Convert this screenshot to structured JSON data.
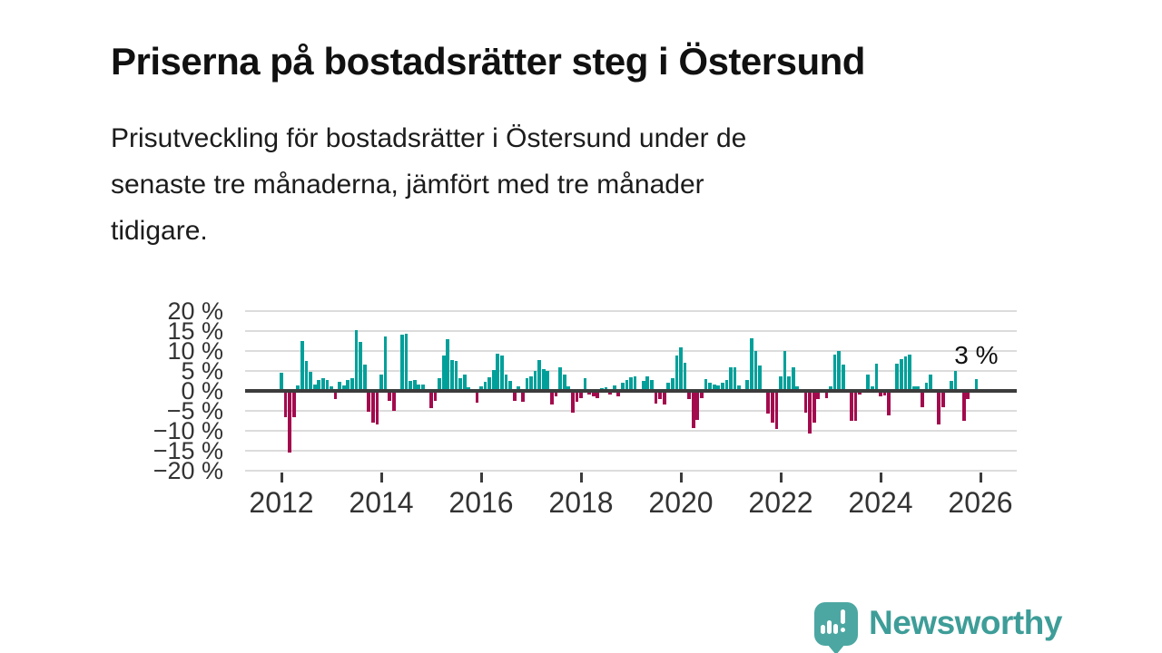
{
  "header": {
    "title": "Priserna på bostadsrätter steg i Östersund",
    "subtitle_lines": [
      "Prisutveckling för bostadsrätter i Östersund under de",
      "senaste tre månaderna, jämfört med tre månader",
      "tidigare."
    ]
  },
  "footer": {
    "brand": "Newsworthy",
    "logo_icon": "bar-chart-speech-bubble-icon"
  },
  "colors": {
    "positive_bar": "#00a09a",
    "negative_bar": "#a30a4e",
    "zero_line": "#3c3c3c",
    "gridline": "#dcdcdc",
    "axis_text": "#333333",
    "title_text": "#111111",
    "brand_teal": "#3e9d98",
    "logo_bubble": "#4ca7a2"
  },
  "chart_data": {
    "type": "bar",
    "unit": "%",
    "x_start": "2012-01",
    "x_step": "1 month",
    "ylim": [
      -20,
      20
    ],
    "grid": true,
    "y_ticks": [
      {
        "value": 20,
        "label": "20 %"
      },
      {
        "value": 15,
        "label": "15 %"
      },
      {
        "value": 10,
        "label": "10 %"
      },
      {
        "value": 5,
        "label": "5 %"
      },
      {
        "value": 0,
        "label": "0 %"
      },
      {
        "value": -5,
        "label": "−5 %"
      },
      {
        "value": -10,
        "label": "−10 %"
      },
      {
        "value": -15,
        "label": "−15 %"
      },
      {
        "value": -20,
        "label": "−20 %"
      }
    ],
    "x_ticks": [
      {
        "year": 2012,
        "label": "2012"
      },
      {
        "year": 2014,
        "label": "2014"
      },
      {
        "year": 2016,
        "label": "2016"
      },
      {
        "year": 2018,
        "label": "2018"
      },
      {
        "year": 2020,
        "label": "2020"
      },
      {
        "year": 2022,
        "label": "2022"
      },
      {
        "year": 2024,
        "label": "2024"
      },
      {
        "year": 2026,
        "label": "2026"
      }
    ],
    "annotation": {
      "text": "3 %",
      "applies_to": "last-bar",
      "value": 3
    },
    "values": [
      4.5,
      -6.5,
      -15.5,
      -6.5,
      1.3,
      12.4,
      7.4,
      4.7,
      1.7,
      2.8,
      3.2,
      2.7,
      1.1,
      -2.0,
      2.2,
      1.3,
      2.8,
      3.2,
      15.2,
      12.2,
      6.5,
      -5.2,
      -7.9,
      -8.4,
      4.2,
      13.7,
      -2.4,
      -5.0,
      0.4,
      14.1,
      14.3,
      2.6,
      2.8,
      1.5,
      1.5,
      0.3,
      -4.4,
      -2.4,
      3.2,
      8.8,
      12.9,
      7.8,
      7.4,
      3.2,
      4.2,
      1.0,
      0.2,
      -2.9,
      1.1,
      2.2,
      3.4,
      5.3,
      9.3,
      8.8,
      4.0,
      2.4,
      -2.4,
      1.1,
      -2.7,
      3.2,
      3.7,
      5.0,
      7.8,
      5.5,
      5.1,
      -3.4,
      -1.4,
      6.0,
      4.0,
      1.1,
      -5.4,
      -2.7,
      -1.8,
      3.2,
      -1.0,
      -1.4,
      -1.9,
      0.6,
      0.9,
      -1.0,
      1.3,
      -1.4,
      2.1,
      2.8,
      3.4,
      3.6,
      0.3,
      2.4,
      3.6,
      2.7,
      -3.1,
      -2.1,
      -3.3,
      2.1,
      3.2,
      8.9,
      10.9,
      7.0,
      -2.1,
      -9.4,
      -7.3,
      -1.9,
      3.0,
      2.1,
      1.5,
      1.3,
      2.1,
      2.8,
      6.0,
      6.0,
      1.3,
      0.3,
      2.7,
      13.1,
      10.1,
      6.3,
      0.2,
      -5.6,
      -7.9,
      -9.6,
      3.7,
      10.1,
      3.7,
      6.0,
      1.1,
      0.2,
      -5.4,
      -10.6,
      -7.9,
      -2.1,
      0.3,
      -1.8,
      1.1,
      9.1,
      10.1,
      6.7,
      0.2,
      -7.5,
      -7.5,
      -1.0,
      0.3,
      4.2,
      1.1,
      6.8,
      -1.4,
      -1.1,
      -6.2,
      0.3,
      6.8,
      8.0,
      8.7,
      9.1,
      1.1,
      1.1,
      -4.1,
      2.1,
      4.0,
      0.2,
      -8.3,
      -4.1,
      0.3,
      2.6,
      4.9,
      -0.2,
      -7.5,
      -2.0,
      0.4,
      3.0
    ]
  }
}
